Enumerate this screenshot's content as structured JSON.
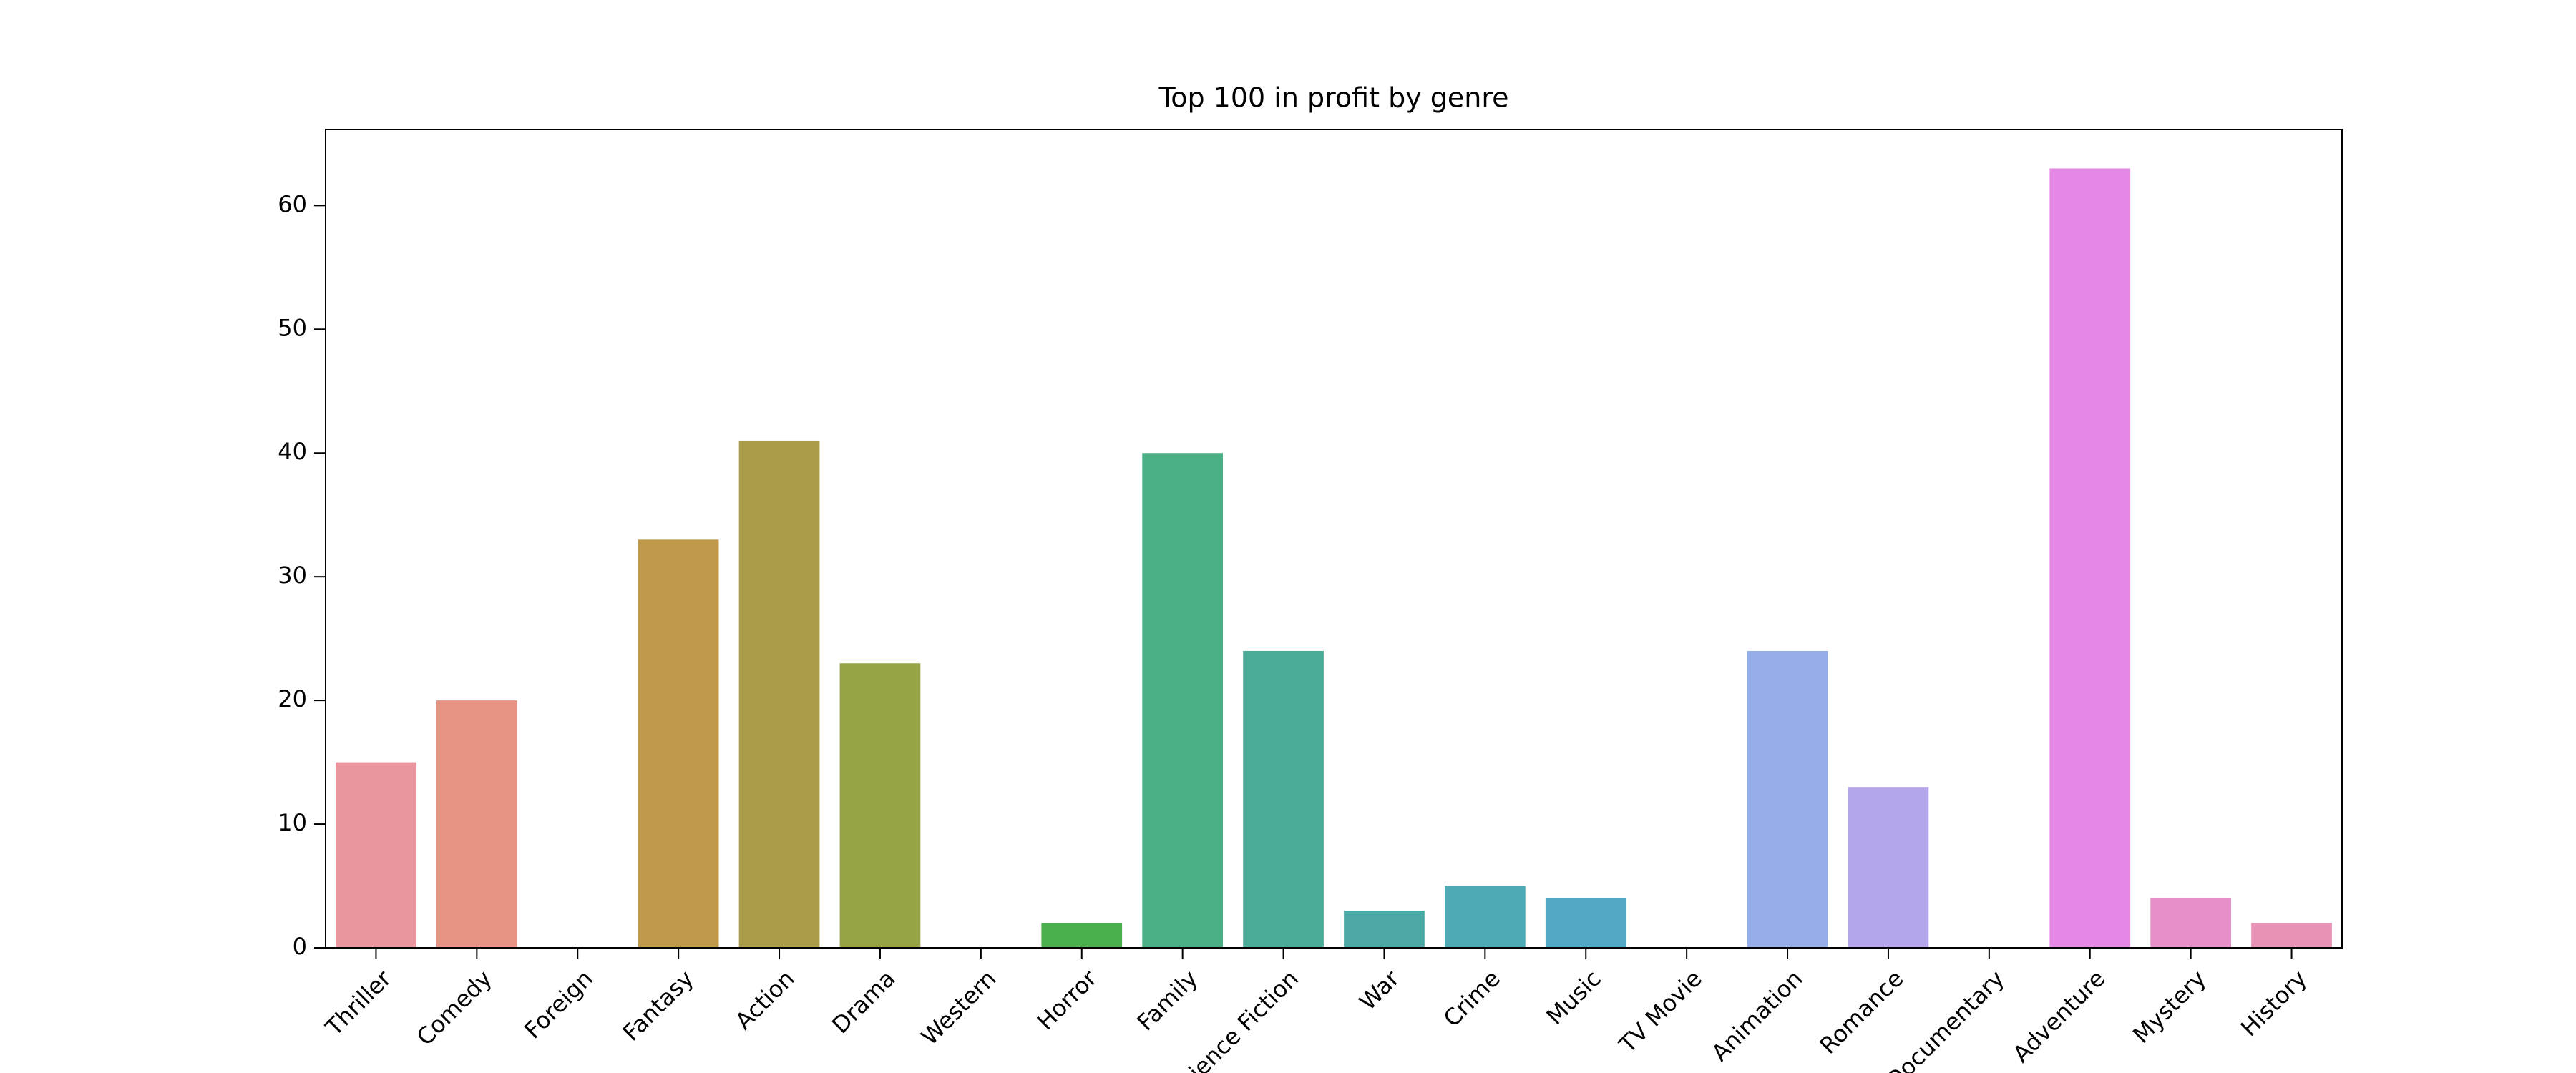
{
  "chart_data": {
    "type": "bar",
    "title": "Top 100 in profit by genre",
    "categories": [
      "Thriller",
      "Comedy",
      "Foreign",
      "Fantasy",
      "Action",
      "Drama",
      "Western",
      "Horror",
      "Family",
      "Science Fiction",
      "War",
      "Crime",
      "Music",
      "TV Movie",
      "Animation",
      "Romance",
      "Documentary",
      "Adventure",
      "Mystery",
      "History"
    ],
    "values": [
      15,
      20,
      0,
      33,
      41,
      23,
      0,
      2,
      40,
      24,
      3,
      5,
      4,
      0,
      24,
      13,
      0,
      63,
      4,
      2
    ],
    "colors": [
      "#e9969e",
      "#e69383",
      "#d99a62",
      "#c0994b",
      "#a99b47",
      "#98a343",
      "#7aaa44",
      "#4caf4d",
      "#4aaf84",
      "#4aab96",
      "#4ba8a4",
      "#4eaab5",
      "#50a8c5",
      "#6fa5e0",
      "#95ade8",
      "#b5a5ea",
      "#d69ae9",
      "#e588e5",
      "#e68fc8",
      "#e892b5"
    ],
    "ylim": [
      0,
      66.15
    ],
    "yticks": [
      0,
      10,
      20,
      30,
      40,
      50,
      60
    ],
    "grid": false
  }
}
